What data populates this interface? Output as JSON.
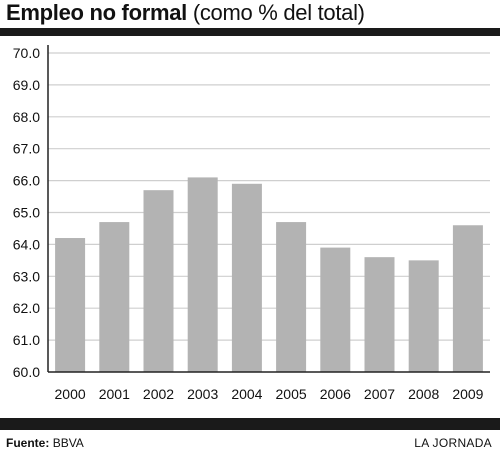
{
  "header": {
    "title": "Empleo no formal",
    "subtitle": "(como % del  total)"
  },
  "footer": {
    "source_label": "Fuente:",
    "source_value": "BBVA",
    "credit": "LA JORNADA"
  },
  "colors": {
    "bar": "#b3b3b3",
    "grid": "#cfcfcf",
    "rules": "#1a1a1a"
  },
  "chart_data": {
    "type": "bar",
    "title": "Empleo no formal (como % del  total)",
    "xlabel": "",
    "ylabel": "",
    "categories": [
      "2000",
      "2001",
      "2002",
      "2003",
      "2004",
      "2005",
      "2006",
      "2007",
      "2008",
      "2009"
    ],
    "values": [
      64.2,
      64.7,
      65.7,
      66.1,
      65.9,
      64.7,
      63.9,
      63.6,
      63.5,
      64.6
    ],
    "ylim": [
      60,
      70
    ],
    "yticks": [
      "60.0",
      "61.0",
      "62.0",
      "63.0",
      "64.0",
      "65.0",
      "66.0",
      "67.0",
      "68.0",
      "69.0",
      "70.0"
    ],
    "grid": "horizontal",
    "legend": "none"
  }
}
